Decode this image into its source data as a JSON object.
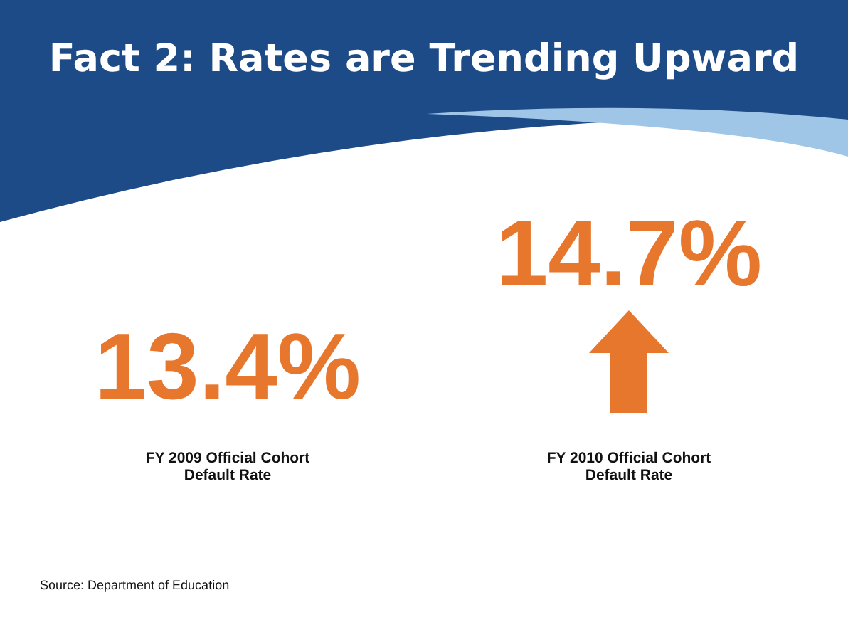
{
  "chart_data": {
    "type": "other",
    "title": "Fact 2: Rates are Trending Upward",
    "categories": [
      "FY 2009 Official Cohort Default Rate",
      "FY 2010 Official Cohort Default Rate"
    ],
    "values": [
      13.4,
      14.7
    ],
    "value_labels": [
      "13.4%",
      "14.7%"
    ],
    "color": "#e8772e",
    "annotations": [
      "Source: Department of Education"
    ]
  }
}
